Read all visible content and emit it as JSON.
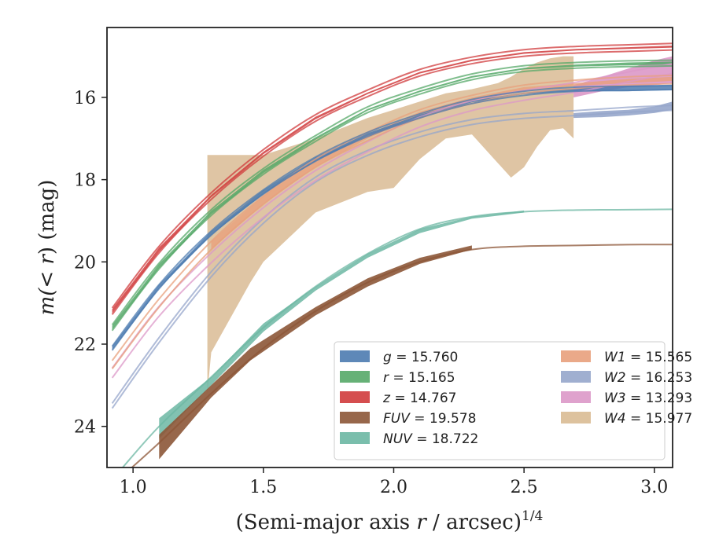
{
  "chart_data": {
    "type": "line",
    "xlabel_main": "(Semi-major axis ",
    "xlabel_var": "r",
    "xlabel_rest": " / arcsec)",
    "xlabel_sup": "1/4",
    "ylabel_pre": "m(< ",
    "ylabel_var": "r",
    "ylabel_post": ") (mag)",
    "xlim": [
      0.9,
      3.07
    ],
    "ylim": [
      25.0,
      14.3
    ],
    "y_inverted": true,
    "xticks": [
      1.0,
      1.5,
      2.0,
      2.5,
      3.0
    ],
    "xtick_labels": [
      "1.0",
      "1.5",
      "2.0",
      "2.5",
      "3.0"
    ],
    "yticks": [
      16,
      18,
      20,
      22,
      24
    ],
    "ytick_labels": [
      "16",
      "18",
      "20",
      "22",
      "24"
    ],
    "grid": false,
    "legend_position": "lower-right",
    "series": [
      {
        "name": "g",
        "legend_text": "g = 15.760",
        "color": "#4c7bb0",
        "band_color": "#4c7bb0",
        "band_opacity": 0.85,
        "model_offsets": [
          -0.05,
          0.05
        ],
        "x": [
          0.92,
          1.1,
          1.3,
          1.5,
          1.7,
          1.9,
          2.1,
          2.3,
          2.5,
          2.7,
          2.9,
          3.07
        ],
        "y": [
          22.1,
          20.6,
          19.3,
          18.3,
          17.5,
          16.9,
          16.45,
          16.1,
          15.9,
          15.8,
          15.78,
          15.76
        ],
        "band_lo": [
          22.05,
          20.55,
          19.25,
          18.25,
          17.45,
          16.87,
          16.42,
          16.08,
          15.88,
          15.78,
          15.72,
          15.7
        ],
        "band_hi": [
          22.15,
          20.65,
          19.35,
          18.35,
          17.55,
          16.93,
          16.48,
          16.12,
          15.92,
          15.85,
          15.85,
          15.82
        ]
      },
      {
        "name": "r",
        "legend_text": "r = 15.165",
        "color": "#55a868",
        "band_color": "#55a868",
        "band_opacity": 0.85,
        "model_offsets": [
          -0.07,
          0.07
        ],
        "x": [
          0.92,
          1.1,
          1.3,
          1.5,
          1.7,
          1.9,
          2.1,
          2.3,
          2.5,
          2.7,
          2.9,
          3.07
        ],
        "y": [
          21.6,
          20.1,
          18.8,
          17.8,
          17.0,
          16.3,
          15.85,
          15.5,
          15.3,
          15.22,
          15.18,
          15.165
        ],
        "band_lo": [
          21.55,
          20.05,
          18.76,
          17.76,
          16.97,
          16.28,
          15.83,
          15.48,
          15.28,
          15.2,
          15.15,
          15.13
        ],
        "band_hi": [
          21.65,
          20.15,
          18.84,
          17.84,
          17.03,
          16.32,
          15.87,
          15.52,
          15.32,
          15.25,
          15.22,
          15.2
        ]
      },
      {
        "name": "z",
        "legend_text": "z = 14.767",
        "color": "#d03b3c",
        "band_color": "#d03b3c",
        "band_opacity": 0.85,
        "model_offsets": [
          -0.08,
          0.08
        ],
        "x": [
          0.92,
          1.1,
          1.3,
          1.5,
          1.7,
          1.9,
          2.1,
          2.3,
          2.5,
          2.7,
          2.9,
          3.07
        ],
        "y": [
          21.2,
          19.7,
          18.4,
          17.35,
          16.5,
          15.9,
          15.4,
          15.1,
          14.92,
          14.84,
          14.8,
          14.767
        ],
        "band_lo": [
          21.15,
          19.65,
          18.37,
          17.32,
          16.47,
          15.88,
          15.38,
          15.08,
          14.9,
          14.82,
          14.78,
          14.74
        ],
        "band_hi": [
          21.25,
          19.75,
          18.43,
          17.38,
          16.53,
          15.92,
          15.42,
          15.12,
          14.94,
          14.86,
          14.82,
          14.79
        ]
      },
      {
        "name": "FUV",
        "legend_text": "FUV = 19.578",
        "color": "#8c5637",
        "band_color": "#8c5637",
        "band_opacity": 0.9,
        "model_offsets": [
          0.0
        ],
        "x": [
          0.96,
          1.1,
          1.3,
          1.5,
          1.7,
          1.9,
          2.1,
          2.3,
          2.5,
          2.7,
          2.9,
          3.07
        ],
        "y": [
          25.2,
          24.4,
          23.2,
          22.1,
          21.2,
          20.5,
          20.0,
          19.7,
          19.62,
          19.6,
          19.58,
          19.578
        ],
        "band_x": [
          1.1,
          1.3,
          1.45,
          1.7,
          1.9,
          2.1,
          2.3
        ],
        "band_lo": [
          24.2,
          23.0,
          22.1,
          21.1,
          20.4,
          19.9,
          19.6
        ],
        "band_hi": [
          24.8,
          23.3,
          22.4,
          21.3,
          20.6,
          20.05,
          19.7
        ]
      },
      {
        "name": "NUV",
        "legend_text": "NUV = 18.722",
        "color": "#6cb7a3",
        "band_color": "#6cb7a3",
        "band_opacity": 0.85,
        "model_offsets": [
          0.0
        ],
        "x": [
          0.96,
          1.1,
          1.3,
          1.5,
          1.7,
          1.9,
          2.1,
          2.3,
          2.5,
          2.7,
          2.9,
          3.07
        ],
        "y": [
          25.0,
          24.0,
          22.8,
          21.6,
          20.6,
          19.8,
          19.2,
          18.9,
          18.78,
          18.74,
          18.73,
          18.722
        ],
        "band_x": [
          1.1,
          1.3,
          1.5,
          1.7,
          1.9,
          2.1,
          2.3,
          2.5
        ],
        "band_lo": [
          23.8,
          22.8,
          21.5,
          20.6,
          19.8,
          19.2,
          18.9,
          18.75
        ],
        "band_hi": [
          24.3,
          23.0,
          21.7,
          20.7,
          19.9,
          19.3,
          18.95,
          18.8
        ]
      },
      {
        "name": "W1",
        "legend_text": "W1 = 15.565",
        "color": "#e8a07c",
        "band_color": "#e8a07c",
        "band_opacity": 0.8,
        "model_offsets": [
          -0.1,
          0.1
        ],
        "x": [
          0.92,
          1.1,
          1.3,
          1.5,
          1.7,
          1.9,
          2.1,
          2.3,
          2.5,
          2.7,
          2.9,
          3.07
        ],
        "y": [
          22.5,
          21.0,
          19.6,
          18.5,
          17.6,
          16.95,
          16.4,
          16.05,
          15.8,
          15.68,
          15.6,
          15.565
        ],
        "band_x": [
          1.3,
          1.5,
          1.7,
          1.9,
          2.1,
          2.3,
          2.5,
          2.7,
          2.9,
          3.07
        ],
        "band_lo": [
          19.5,
          18.4,
          17.5,
          16.9,
          16.35,
          16.0,
          15.75,
          15.65,
          15.55,
          15.5
        ],
        "band_hi": [
          19.7,
          18.6,
          17.7,
          17.0,
          16.45,
          16.1,
          15.85,
          15.72,
          15.65,
          15.6
        ]
      },
      {
        "name": "W2",
        "legend_text": "W2 = 16.253",
        "color": "#96a6cb",
        "band_color": "#96a6cb",
        "band_opacity": 0.9,
        "model_offsets": [
          -0.06,
          0.06
        ],
        "x": [
          0.92,
          1.1,
          1.3,
          1.5,
          1.7,
          1.9,
          2.1,
          2.3,
          2.5,
          2.7,
          2.9,
          3.07
        ],
        "y": [
          23.5,
          21.9,
          20.3,
          19.0,
          18.0,
          17.35,
          16.9,
          16.6,
          16.45,
          16.38,
          16.3,
          16.253
        ],
        "band_x": [
          2.69,
          2.8,
          2.9,
          3.0,
          3.07
        ],
        "band_lo": [
          16.38,
          16.33,
          16.3,
          16.22,
          16.1
        ],
        "band_hi": [
          16.5,
          16.48,
          16.44,
          16.38,
          16.3
        ]
      },
      {
        "name": "W3",
        "legend_text": "W3 = 13.293",
        "color": "#dc98c8",
        "band_color": "#dc98c8",
        "band_opacity": 0.9,
        "model_offsets": [
          -0.12,
          0.12
        ],
        "x": [
          0.92,
          1.1,
          1.3,
          1.5,
          1.7,
          1.9,
          2.1,
          2.3,
          2.5,
          2.7,
          2.9,
          3.07
        ],
        "y": [
          22.7,
          21.2,
          19.9,
          18.8,
          17.9,
          17.2,
          16.6,
          16.2,
          15.95,
          15.75,
          15.5,
          15.3
        ],
        "band_x": [
          2.69,
          2.8,
          2.9,
          3.0,
          3.07
        ],
        "band_lo": [
          15.7,
          15.5,
          15.3,
          15.1,
          15.0
        ],
        "band_hi": [
          16.0,
          15.85,
          15.75,
          15.7,
          15.65
        ]
      },
      {
        "name": "W4",
        "legend_text": "W4 = 15.977",
        "color": "#d9bb94",
        "band_color": "#d9bb94",
        "band_opacity": 0.85,
        "model_offsets": [
          0.0
        ],
        "x": [],
        "y": [],
        "band_x": [
          1.285,
          1.3,
          1.45,
          1.5,
          1.7,
          1.9,
          2.0,
          2.1,
          2.2,
          2.3,
          2.4,
          2.45,
          2.5,
          2.55,
          2.6,
          2.65,
          2.69
        ],
        "band_lo": [
          23.2,
          22.2,
          20.5,
          20.0,
          18.8,
          18.3,
          18.2,
          17.5,
          17.0,
          16.9,
          17.6,
          17.95,
          17.7,
          17.2,
          16.8,
          16.75,
          17.0
        ],
        "band_hi": [
          17.4,
          17.4,
          17.4,
          17.4,
          17.0,
          16.5,
          16.3,
          16.1,
          15.9,
          15.8,
          15.65,
          15.5,
          15.3,
          15.15,
          15.05,
          15.0,
          15.0
        ]
      }
    ],
    "legend_columns": [
      [
        "g",
        "r",
        "z",
        "FUV",
        "NUV"
      ],
      [
        "W1",
        "W2",
        "W3",
        "W4"
      ]
    ]
  }
}
